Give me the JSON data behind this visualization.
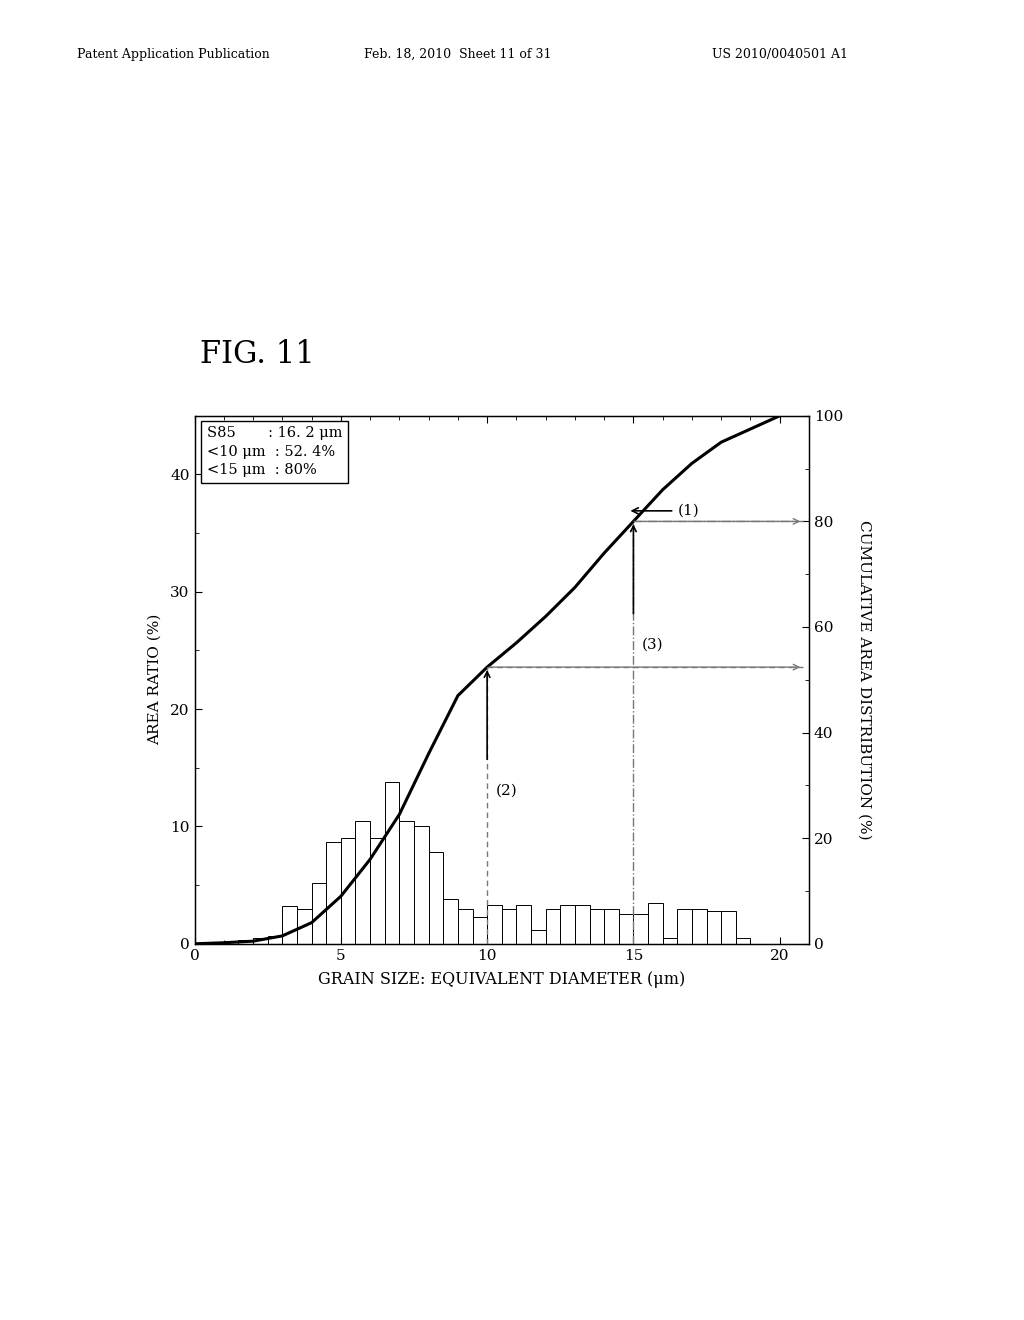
{
  "title": "FIG. 11",
  "xlabel": "GRAIN SIZE: EQUIVALENT DIAMETER (μm)",
  "ylabel_left": "AREA RATIO (%)",
  "ylabel_right": "CUMULATIVE AREA DISTRIBUTION (%)",
  "bar_edges": [
    0.5,
    1.0,
    1.5,
    2.0,
    2.5,
    3.0,
    3.5,
    4.0,
    4.5,
    5.0,
    5.5,
    6.0,
    6.5,
    7.0,
    7.5,
    8.0,
    8.5,
    9.0,
    9.5,
    10.0,
    10.5,
    11.0,
    11.5,
    12.0,
    12.5,
    13.0,
    13.5,
    14.0,
    14.5,
    15.0,
    15.5,
    16.0,
    16.5,
    17.0,
    17.5,
    18.0,
    18.5,
    19.0,
    19.5,
    20.0,
    20.5
  ],
  "bar_heights": [
    0.1,
    0.2,
    0.3,
    0.5,
    0.7,
    3.2,
    3.0,
    5.2,
    8.7,
    9.0,
    10.5,
    9.0,
    13.8,
    10.5,
    10.0,
    7.8,
    3.8,
    3.0,
    2.3,
    3.3,
    3.0,
    3.3,
    1.2,
    3.0,
    3.3,
    3.3,
    3.0,
    3.0,
    2.5,
    2.5,
    3.5,
    0.5,
    3.0,
    3.0,
    2.8,
    2.8,
    0.5,
    0.0,
    0.0,
    0.0
  ],
  "cum_x": [
    0.0,
    1.0,
    2.0,
    3.0,
    4.0,
    5.0,
    6.0,
    7.0,
    8.0,
    9.0,
    10.0,
    11.0,
    12.0,
    13.0,
    14.0,
    15.0,
    16.0,
    17.0,
    18.0,
    19.0,
    20.0
  ],
  "cum_y": [
    0.0,
    0.2,
    0.5,
    1.5,
    4.0,
    9.0,
    16.0,
    24.5,
    36.0,
    47.0,
    52.4,
    57.0,
    62.0,
    67.5,
    74.0,
    80.0,
    86.0,
    91.0,
    95.0,
    97.5,
    100.0
  ],
  "bar_width": 0.5,
  "xlim": [
    0,
    21
  ],
  "ylim_left": [
    0,
    45
  ],
  "ylim_right": [
    0,
    100
  ],
  "yticks_left": [
    0,
    10,
    20,
    30,
    40
  ],
  "yticks_right": [
    0,
    20,
    40,
    60,
    80,
    100
  ],
  "xticks": [
    0,
    5,
    10,
    15,
    20
  ],
  "annotation_line1": "S85       : 16. 2 μm",
  "annotation_line2": "<10 μm  : 52. 4%",
  "annotation_line3": "<15 μm  : 80%",
  "header_left": "Patent Application Publication",
  "header_center": "Feb. 18, 2010  Sheet 11 of 31",
  "header_right": "US 2010/0040501 A1",
  "ref_x1": 10.0,
  "ref_x2": 15.0,
  "ref_cum_y1": 52.4,
  "ref_cum_y2": 80.0,
  "background_color": "#ffffff",
  "bar_color": "#ffffff",
  "bar_edge_color": "#000000",
  "curve_color": "#000000",
  "line_color": "#777777"
}
